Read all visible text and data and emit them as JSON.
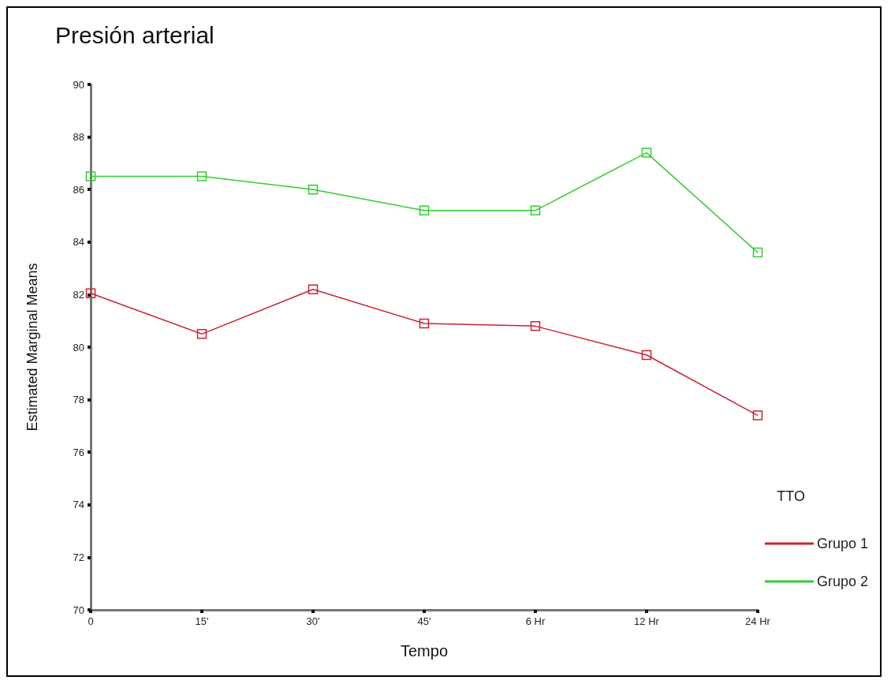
{
  "chart_data": {
    "type": "line",
    "title": "Presión arterial",
    "xlabel": "Tempo",
    "ylabel": "Estimated Marginal Means",
    "legend_title": "TTO",
    "categories": [
      "0",
      "15'",
      "30'",
      "45'",
      "6 Hr",
      "12 Hr",
      "24 Hr"
    ],
    "series": [
      {
        "name": "Grupo 1",
        "color": "#cc2233",
        "values": [
          82.05,
          80.5,
          82.2,
          80.9,
          80.8,
          79.7,
          77.4
        ]
      },
      {
        "name": "Grupo 2",
        "color": "#33cc33",
        "values": [
          86.5,
          86.5,
          86.0,
          85.2,
          85.2,
          87.4,
          83.6
        ]
      }
    ],
    "ylim": [
      70,
      90
    ],
    "yticks": [
      70,
      72,
      74,
      76,
      78,
      80,
      82,
      84,
      86,
      88,
      90
    ],
    "grid": false,
    "legend": "right",
    "marker": "square",
    "line_style": "solid"
  }
}
